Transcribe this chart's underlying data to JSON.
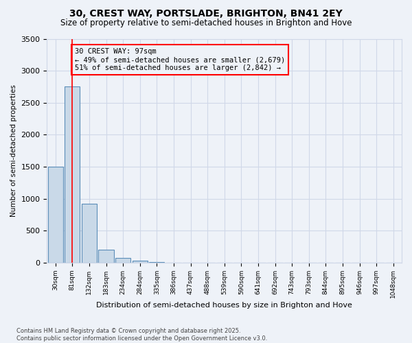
{
  "title": "30, CREST WAY, PORTSLADE, BRIGHTON, BN41 2EY",
  "subtitle": "Size of property relative to semi-detached houses in Brighton and Hove",
  "xlabel": "Distribution of semi-detached houses by size in Brighton and Hove",
  "ylabel": "Number of semi-detached properties",
  "property_label": "30 CREST WAY: 97sqm",
  "annotation_line1": "← 49% of semi-detached houses are smaller (2,679)",
  "annotation_line2": "51% of semi-detached houses are larger (2,842) →",
  "bin_labels": [
    "30sqm",
    "81sqm",
    "132sqm",
    "183sqm",
    "234sqm",
    "284sqm",
    "335sqm",
    "386sqm",
    "437sqm",
    "488sqm",
    "539sqm",
    "590sqm",
    "641sqm",
    "692sqm",
    "743sqm",
    "793sqm",
    "844sqm",
    "895sqm",
    "946sqm",
    "997sqm",
    "1048sqm"
  ],
  "bar_values": [
    1500,
    2750,
    920,
    200,
    75,
    30,
    5,
    0,
    0,
    0,
    0,
    0,
    0,
    0,
    0,
    0,
    0,
    0,
    0,
    0,
    0
  ],
  "bar_color": "#c9d9e8",
  "bar_edge_color": "#5b8db8",
  "red_line_x": 1.0,
  "ylim": [
    0,
    3500
  ],
  "yticks": [
    0,
    500,
    1000,
    1500,
    2000,
    2500,
    3000,
    3500
  ],
  "grid_color": "#d0d8e8",
  "background_color": "#eef2f8",
  "footer_line1": "Contains HM Land Registry data © Crown copyright and database right 2025.",
  "footer_line2": "Contains public sector information licensed under the Open Government Licence v3.0."
}
